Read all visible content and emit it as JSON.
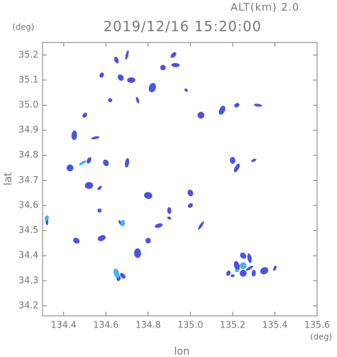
{
  "chart_data": {
    "type": "scatter",
    "title": "2019/12/16 15:20:00",
    "subtitle": "ALT(km) 2.0",
    "y_unit": "(deg)",
    "x_unit": "(deg)",
    "x_label": "lon",
    "y_label": "lat",
    "xlim": [
      134.3,
      135.6
    ],
    "ylim": [
      34.16,
      35.25
    ],
    "xticks": [
      134.4,
      134.6,
      134.8,
      {
        "value": 135,
        "label": "135.0"
      },
      135.2,
      135.4,
      135.6
    ],
    "yticks": [
      34.2,
      34.3,
      34.4,
      34.5,
      34.6,
      34.7,
      34.8,
      34.9,
      {
        "value": 35,
        "label": "35.0"
      },
      35.1,
      35.2
    ],
    "series": [
      {
        "color": "#4a52e8",
        "x": [
          135.2,
          135.25,
          135.22,
          135.18,
          135.28,
          135.3,
          135.25,
          135.28,
          135.4,
          135.35,
          134.66,
          134.68,
          134.32,
          134.46,
          134.58,
          134.57,
          134.67,
          134.75,
          134.8,
          134.85,
          134.9,
          134.43,
          134.45,
          134.5,
          134.55,
          134.52,
          134.6,
          134.7,
          134.57,
          134.52,
          134.58,
          134.65,
          134.7,
          134.67,
          134.72,
          134.62,
          134.75,
          134.82,
          134.87,
          134.93,
          134.98,
          135.05,
          135.15,
          135.22,
          135.32,
          134.92,
          135.2,
          135.22,
          135.3,
          134.8,
          135.0,
          134.9,
          135.05,
          135.0
        ],
        "y": [
          34.32,
          34.33,
          34.36,
          34.33,
          34.35,
          34.33,
          34.4,
          34.39,
          34.35,
          34.34,
          34.31,
          34.32,
          34.54,
          34.46,
          34.47,
          34.58,
          34.53,
          34.41,
          34.46,
          34.52,
          34.55,
          34.75,
          34.88,
          34.96,
          34.87,
          34.78,
          34.77,
          34.77,
          34.67,
          34.68,
          35.12,
          35.18,
          35.2,
          35.11,
          35.1,
          35.02,
          35.02,
          35.07,
          35.15,
          35.16,
          35.06,
          34.96,
          34.98,
          35.0,
          35.0,
          35.2,
          34.78,
          34.75,
          34.78,
          34.64,
          34.6,
          34.58,
          34.52,
          34.65
        ]
      },
      {
        "color": "#45b4ee",
        "x": [
          135.22,
          135.25,
          134.65,
          134.32,
          134.49,
          134.68
        ],
        "y": [
          34.34,
          34.36,
          34.33,
          34.55,
          34.77,
          34.53
        ]
      }
    ]
  }
}
